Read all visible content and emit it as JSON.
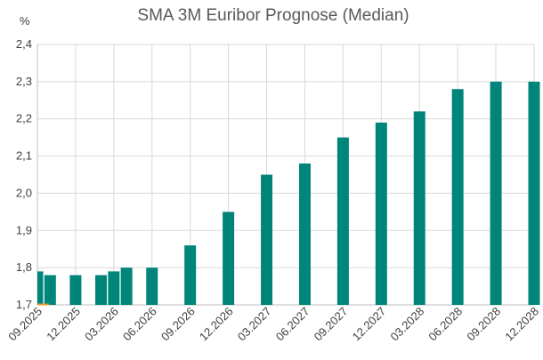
{
  "chart_data": {
    "type": "bar",
    "title": "SMA 3M Euribor Prognose (Median)",
    "ylabel": "%",
    "xlabel": "",
    "ylim": [
      1.7,
      2.4
    ],
    "y_ticks": [
      "1,7",
      "1,8",
      "1,9",
      "2,0",
      "2,1",
      "2,2",
      "2,3",
      "2,4"
    ],
    "x_tick_labels": [
      "09.2025",
      "12.2025",
      "03.2026",
      "06.2026",
      "09.2026",
      "12.2026",
      "03.2027",
      "06.2027",
      "09.2027",
      "12.2027",
      "03.2028",
      "06.2028",
      "09.2028",
      "12.2028"
    ],
    "grid": "vertical and horizontal",
    "bar_color": "#00857a",
    "marker_color": "#e39b2c",
    "series": [
      {
        "values": [
          {
            "x": "09.2025",
            "y": 1.79
          },
          {
            "x": "10.2025",
            "y": 1.78
          },
          {
            "x": "12.2025",
            "y": 1.78
          },
          {
            "x": "02.2026",
            "y": 1.78
          },
          {
            "x": "03.2026",
            "y": 1.79
          },
          {
            "x": "04.2026",
            "y": 1.8
          },
          {
            "x": "06.2026",
            "y": 1.8
          },
          {
            "x": "09.2026",
            "y": 1.86
          },
          {
            "x": "12.2026",
            "y": 1.95
          },
          {
            "x": "03.2027",
            "y": 2.05
          },
          {
            "x": "06.2027",
            "y": 2.08
          },
          {
            "x": "09.2027",
            "y": 2.15
          },
          {
            "x": "12.2027",
            "y": 2.19
          },
          {
            "x": "03.2028",
            "y": 2.22
          },
          {
            "x": "06.2028",
            "y": 2.28
          },
          {
            "x": "09.2028",
            "y": 2.3
          },
          {
            "x": "12.2028",
            "y": 2.3
          }
        ]
      }
    ]
  }
}
